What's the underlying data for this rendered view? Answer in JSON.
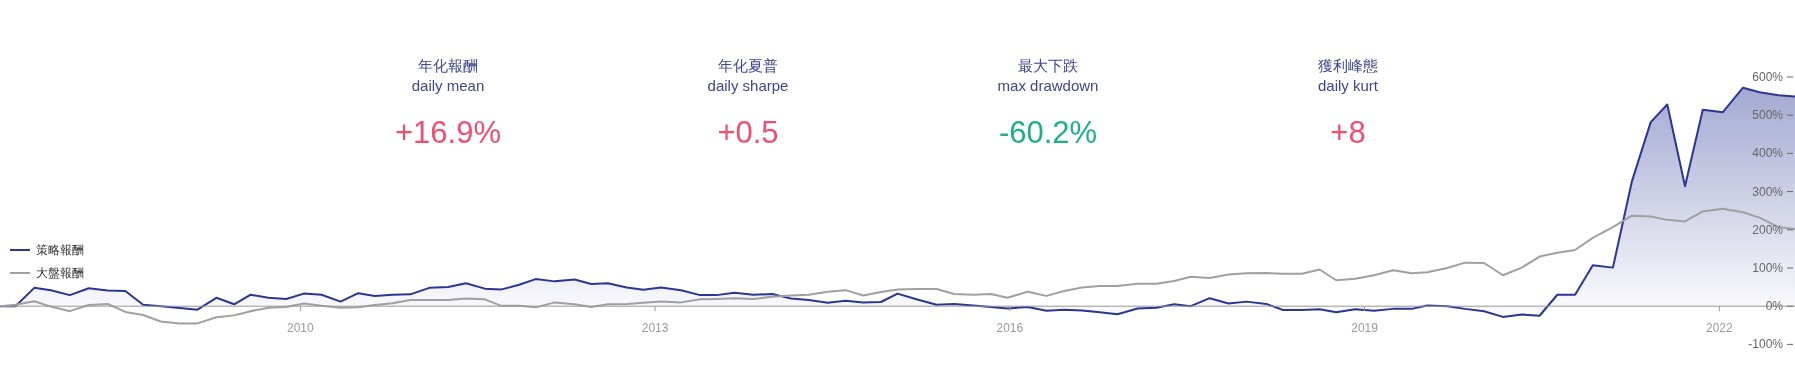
{
  "chart_data": [
    {
      "type": "other",
      "annotations": [
        "年化報酬",
        "daily mean",
        "+16.9%",
        "年化夏普",
        "daily sharpe",
        "+0.5",
        "最大下跌",
        "max drawdown",
        "-60.2%",
        "獲利峰態",
        "daily kurt",
        "+8"
      ],
      "colors": [
        "#f54c6e",
        "#f54c6e",
        "#1bb08a",
        "#f54c6e"
      ]
    },
    {
      "type": "line",
      "legend": "left",
      "grid": false,
      "xlim": [
        2007.46,
        2022.64
      ],
      "xticks": [
        2010,
        2013,
        2016,
        2019,
        2022
      ],
      "ylim": [
        -100,
        600
      ],
      "yticks": [
        {
          "value": -100,
          "label": "-100%"
        },
        {
          "value": 0,
          "label": "0%"
        },
        {
          "value": 100,
          "label": "100%"
        },
        {
          "value": 200,
          "label": "200%"
        },
        {
          "value": 300,
          "label": "300%"
        },
        {
          "value": 400,
          "label": "400%"
        },
        {
          "value": 500,
          "label": "500%"
        },
        {
          "value": 600,
          "label": "600%"
        }
      ],
      "x": [
        2007.46,
        2007.59,
        2007.75,
        2007.89,
        2008.05,
        2008.21,
        2008.37,
        2008.52,
        2008.67,
        2008.82,
        2008.98,
        2009.13,
        2009.29,
        2009.44,
        2009.58,
        2009.73,
        2009.88,
        2010.03,
        2010.18,
        2010.34,
        2010.49,
        2010.63,
        2010.78,
        2010.93,
        2011.09,
        2011.25,
        2011.4,
        2011.56,
        2011.7,
        2011.85,
        2011.99,
        2012.15,
        2012.32,
        2012.46,
        2012.6,
        2012.76,
        2012.9,
        2013.05,
        2013.22,
        2013.38,
        2013.52,
        2013.67,
        2013.83,
        2013.99,
        2014.15,
        2014.3,
        2014.46,
        2014.61,
        2014.76,
        2014.91,
        2015.05,
        2015.21,
        2015.38,
        2015.53,
        2015.69,
        2015.84,
        2015.98,
        2016.15,
        2016.31,
        2016.46,
        2016.61,
        2016.76,
        2016.91,
        2017.08,
        2017.24,
        2017.39,
        2017.53,
        2017.69,
        2017.85,
        2018.0,
        2018.17,
        2018.31,
        2018.47,
        2018.62,
        2018.76,
        2018.92,
        2019.08,
        2019.24,
        2019.4,
        2019.53,
        2019.7,
        2019.85,
        2020.01,
        2020.17,
        2020.33,
        2020.48,
        2020.63,
        2020.78,
        2020.93,
        2021.1,
        2021.26,
        2021.42,
        2021.56,
        2021.71,
        2021.86,
        2022.03,
        2022.2,
        2022.34,
        2022.5,
        2022.64
      ],
      "series": [
        {
          "name": "策略報酬",
          "type": "area",
          "color": "#2b3694",
          "values": [
            0,
            0,
            48,
            42,
            29,
            47,
            41,
            40,
            4,
            0,
            -5,
            -9,
            22,
            5,
            30,
            22,
            19,
            33,
            30,
            12,
            34,
            27,
            30,
            31,
            48,
            50,
            60,
            46,
            44,
            56,
            71,
            65,
            70,
            58,
            60,
            49,
            43,
            49,
            42,
            29,
            29,
            35,
            30,
            32,
            20,
            16,
            9,
            14,
            10,
            11,
            33,
            18,
            4,
            6,
            2,
            -2,
            -6,
            -2,
            -12,
            -9,
            -11,
            -16,
            -21,
            -6,
            -4,
            5,
            0,
            21,
            7,
            12,
            6,
            -10,
            -10,
            -8,
            -16,
            -8,
            -12,
            -7,
            -7,
            2,
            0,
            -7,
            -13,
            -28,
            -22,
            -25,
            30,
            30,
            107,
            101,
            326,
            482,
            528,
            314,
            514,
            508,
            572,
            560,
            552,
            549
          ]
        },
        {
          "name": "大盤報酬",
          "type": "line",
          "color": "#a0a0a0",
          "values": [
            0,
            4,
            13,
            -1,
            -13,
            3,
            6,
            -15,
            -23,
            -40,
            -45,
            -45,
            -29,
            -24,
            -13,
            -4,
            -2,
            7,
            1,
            -4,
            -3,
            3,
            8,
            16,
            16,
            16,
            20,
            18,
            1,
            1,
            -3,
            10,
            5,
            -2,
            5,
            6,
            9,
            12,
            10,
            18,
            19,
            21,
            19,
            25,
            28,
            30,
            38,
            42,
            28,
            37,
            44,
            45,
            45,
            32,
            30,
            32,
            22,
            38,
            27,
            40,
            49,
            53,
            53,
            59,
            59,
            66,
            77,
            74,
            83,
            86,
            87,
            85,
            85,
            96,
            68,
            72,
            81,
            94,
            86,
            89,
            100,
            114,
            113,
            81,
            101,
            130,
            140,
            147,
            179,
            207,
            237,
            235,
            226,
            222,
            248,
            255,
            246,
            232,
            207,
            202
          ]
        }
      ]
    }
  ]
}
